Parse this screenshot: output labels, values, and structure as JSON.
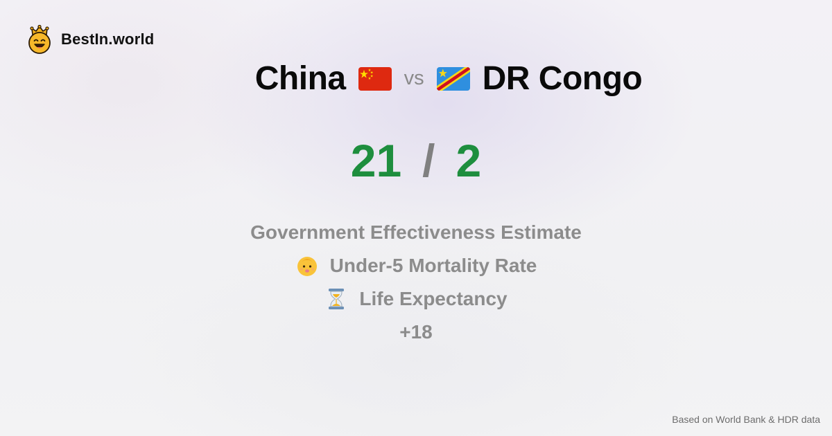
{
  "brand": {
    "name": "BestIn.world",
    "logo_icon": "crowned-smiley-icon"
  },
  "comparison": {
    "left_country": "China",
    "left_flag": "china-flag-icon",
    "vs_label": "vs",
    "right_country": "DR Congo",
    "right_flag": "dr-congo-flag-icon"
  },
  "score": {
    "left": "21",
    "separator": "/",
    "right": "2",
    "color": "#1e8e3e"
  },
  "metrics": [
    {
      "label": "Government Effectiveness Estimate",
      "icon": ""
    },
    {
      "label": "Under-5 Mortality Rate",
      "icon": "baby-icon"
    },
    {
      "label": "Life Expectancy",
      "icon": "hourglass-icon"
    }
  ],
  "more_count": "+18",
  "footer": {
    "source": "Based on World Bank & HDR data"
  }
}
